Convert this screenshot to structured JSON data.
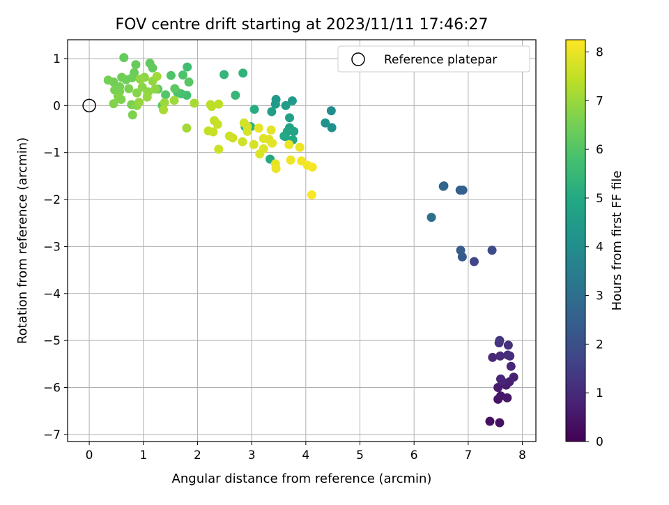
{
  "chart_data": {
    "type": "scatter",
    "title": "FOV centre drift starting at 2023/11/11 17:46:27",
    "xlabel": "Angular distance from reference (arcmin)",
    "ylabel": "Rotation from reference (arcmin)",
    "xlim": [
      -0.4,
      8.25
    ],
    "ylim": [
      -7.15,
      1.4
    ],
    "xticks": [
      0,
      1,
      2,
      3,
      4,
      5,
      6,
      7,
      8
    ],
    "yticks": [
      1,
      0,
      -1,
      -2,
      -3,
      -4,
      -5,
      -6,
      -7
    ],
    "grid": true,
    "legend": {
      "position": "upper-right",
      "entries": [
        "Reference platepar"
      ]
    },
    "reference_point": {
      "x": 0,
      "y": 0,
      "marker": "open-circle"
    },
    "colorbar": {
      "label": "Hours from first FF file",
      "min": 0,
      "max": 8.25,
      "ticks": [
        0,
        1,
        2,
        3,
        4,
        5,
        6,
        7,
        8
      ],
      "colormap": "viridis"
    },
    "points": [
      {
        "x": 7.4,
        "y": -6.72,
        "h": 0.35
      },
      {
        "x": 7.58,
        "y": -6.75,
        "h": 0.4
      },
      {
        "x": 7.55,
        "y": -6.25,
        "h": 0.45
      },
      {
        "x": 7.6,
        "y": -6.18,
        "h": 0.5
      },
      {
        "x": 7.72,
        "y": -6.22,
        "h": 0.55
      },
      {
        "x": 7.55,
        "y": -6.0,
        "h": 0.6
      },
      {
        "x": 7.7,
        "y": -5.95,
        "h": 0.65
      },
      {
        "x": 7.76,
        "y": -5.88,
        "h": 0.7
      },
      {
        "x": 7.84,
        "y": -5.78,
        "h": 0.75
      },
      {
        "x": 7.6,
        "y": -5.82,
        "h": 0.8
      },
      {
        "x": 7.62,
        "y": -5.86,
        "h": 0.85
      },
      {
        "x": 7.79,
        "y": -5.55,
        "h": 0.9
      },
      {
        "x": 7.45,
        "y": -5.36,
        "h": 0.95
      },
      {
        "x": 7.59,
        "y": -5.33,
        "h": 1.0
      },
      {
        "x": 7.73,
        "y": -5.31,
        "h": 1.05
      },
      {
        "x": 7.77,
        "y": -5.33,
        "h": 1.1
      },
      {
        "x": 7.74,
        "y": -5.1,
        "h": 1.15
      },
      {
        "x": 7.57,
        "y": -5.05,
        "h": 1.2
      },
      {
        "x": 7.58,
        "y": -5.0,
        "h": 1.3
      },
      {
        "x": 7.11,
        "y": -3.32,
        "h": 1.7
      },
      {
        "x": 7.44,
        "y": -3.08,
        "h": 1.9
      },
      {
        "x": 6.89,
        "y": -3.22,
        "h": 2.3
      },
      {
        "x": 6.86,
        "y": -3.08,
        "h": 2.4
      },
      {
        "x": 6.85,
        "y": -1.8,
        "h": 2.5
      },
      {
        "x": 6.9,
        "y": -1.8,
        "h": 2.55
      },
      {
        "x": 6.55,
        "y": -1.71,
        "h": 2.7
      },
      {
        "x": 6.54,
        "y": -1.72,
        "h": 2.75
      },
      {
        "x": 6.32,
        "y": -2.38,
        "h": 3.0
      },
      {
        "x": 4.47,
        "y": -0.11,
        "h": 4.0
      },
      {
        "x": 4.48,
        "y": -0.47,
        "h": 4.1
      },
      {
        "x": 4.36,
        "y": -0.37,
        "h": 4.2
      },
      {
        "x": 3.45,
        "y": 0.13,
        "h": 4.4
      },
      {
        "x": 3.44,
        "y": 0.03,
        "h": 4.45
      },
      {
        "x": 3.75,
        "y": 0.1,
        "h": 4.5
      },
      {
        "x": 3.63,
        "y": 0.0,
        "h": 4.55
      },
      {
        "x": 3.37,
        "y": -0.13,
        "h": 4.6
      },
      {
        "x": 3.7,
        "y": -0.26,
        "h": 4.65
      },
      {
        "x": 3.7,
        "y": -0.47,
        "h": 4.7
      },
      {
        "x": 3.78,
        "y": -0.55,
        "h": 4.75
      },
      {
        "x": 3.66,
        "y": -0.55,
        "h": 4.8
      },
      {
        "x": 3.62,
        "y": -0.66,
        "h": 4.85
      },
      {
        "x": 3.76,
        "y": -0.73,
        "h": 4.9
      },
      {
        "x": 3.6,
        "y": -0.65,
        "h": 4.95
      },
      {
        "x": 3.34,
        "y": -1.14,
        "h": 5.0
      },
      {
        "x": 3.05,
        "y": -0.08,
        "h": 5.1
      },
      {
        "x": 2.88,
        "y": -0.45,
        "h": 5.15
      },
      {
        "x": 2.98,
        "y": -0.45,
        "h": 5.2
      },
      {
        "x": 2.84,
        "y": 0.69,
        "h": 5.3
      },
      {
        "x": 2.49,
        "y": 0.66,
        "h": 5.4
      },
      {
        "x": 2.7,
        "y": 0.22,
        "h": 5.45
      },
      {
        "x": 1.81,
        "y": 0.82,
        "h": 5.7
      },
      {
        "x": 1.8,
        "y": 0.22,
        "h": 5.75
      },
      {
        "x": 1.7,
        "y": 0.25,
        "h": 5.8
      },
      {
        "x": 1.63,
        "y": 0.28,
        "h": 5.85
      },
      {
        "x": 1.73,
        "y": 0.65,
        "h": 5.9
      },
      {
        "x": 1.51,
        "y": 0.64,
        "h": 5.95
      },
      {
        "x": 1.41,
        "y": 0.23,
        "h": 6.0
      },
      {
        "x": 1.35,
        "y": 0.0,
        "h": 6.05
      },
      {
        "x": 1.84,
        "y": 0.5,
        "h": 6.1
      },
      {
        "x": 1.58,
        "y": 0.36,
        "h": 6.15
      },
      {
        "x": 1.27,
        "y": 0.35,
        "h": 6.2
      },
      {
        "x": 1.17,
        "y": 0.8,
        "h": 6.25
      },
      {
        "x": 1.12,
        "y": 0.9,
        "h": 6.25
      },
      {
        "x": 0.64,
        "y": 1.02,
        "h": 6.3
      },
      {
        "x": 0.86,
        "y": 0.87,
        "h": 6.3
      },
      {
        "x": 0.83,
        "y": 0.7,
        "h": 6.35
      },
      {
        "x": 0.79,
        "y": 0.59,
        "h": 6.4
      },
      {
        "x": 0.68,
        "y": 0.55,
        "h": 6.4
      },
      {
        "x": 0.45,
        "y": 0.5,
        "h": 6.45
      },
      {
        "x": 0.6,
        "y": 0.6,
        "h": 6.45
      },
      {
        "x": 0.56,
        "y": 0.4,
        "h": 6.5
      },
      {
        "x": 0.35,
        "y": 0.54,
        "h": 6.5
      },
      {
        "x": 0.56,
        "y": 0.3,
        "h": 6.55
      },
      {
        "x": 0.47,
        "y": 0.33,
        "h": 6.55
      },
      {
        "x": 0.73,
        "y": 0.36,
        "h": 6.6
      },
      {
        "x": 0.78,
        "y": 0.02,
        "h": 6.6
      },
      {
        "x": 0.8,
        "y": -0.2,
        "h": 6.65
      },
      {
        "x": 0.59,
        "y": 0.13,
        "h": 6.65
      },
      {
        "x": 0.45,
        "y": 0.04,
        "h": 6.7
      },
      {
        "x": 0.53,
        "y": 0.2,
        "h": 6.7
      },
      {
        "x": 0.88,
        "y": 0.0,
        "h": 6.75
      },
      {
        "x": 0.88,
        "y": 0.27,
        "h": 6.75
      },
      {
        "x": 0.98,
        "y": 0.39,
        "h": 6.8
      },
      {
        "x": 1.02,
        "y": 0.6,
        "h": 6.8
      },
      {
        "x": 1.09,
        "y": 0.29,
        "h": 6.85
      },
      {
        "x": 1.22,
        "y": 0.35,
        "h": 6.85
      },
      {
        "x": 1.17,
        "y": 0.52,
        "h": 6.9
      },
      {
        "x": 0.94,
        "y": 0.56,
        "h": 6.9
      },
      {
        "x": 1.07,
        "y": 0.18,
        "h": 6.95
      },
      {
        "x": 0.92,
        "y": 0.07,
        "h": 6.95
      },
      {
        "x": 1.39,
        "y": 0.06,
        "h": 7.0
      },
      {
        "x": 1.57,
        "y": 0.11,
        "h": 7.05
      },
      {
        "x": 1.25,
        "y": 0.62,
        "h": 7.05
      },
      {
        "x": 1.8,
        "y": -0.48,
        "h": 7.1
      },
      {
        "x": 1.94,
        "y": 0.05,
        "h": 7.15
      },
      {
        "x": 1.37,
        "y": -0.09,
        "h": 7.15
      },
      {
        "x": 2.24,
        "y": 0.02,
        "h": 7.4
      },
      {
        "x": 2.26,
        "y": -0.02,
        "h": 7.4
      },
      {
        "x": 2.39,
        "y": 0.03,
        "h": 7.45
      },
      {
        "x": 2.2,
        "y": -0.54,
        "h": 7.5
      },
      {
        "x": 2.31,
        "y": -0.32,
        "h": 7.5
      },
      {
        "x": 2.37,
        "y": -0.4,
        "h": 7.55
      },
      {
        "x": 2.29,
        "y": -0.56,
        "h": 7.55
      },
      {
        "x": 2.39,
        "y": -0.93,
        "h": 7.6
      },
      {
        "x": 2.59,
        "y": -0.65,
        "h": 7.6
      },
      {
        "x": 2.65,
        "y": -0.69,
        "h": 7.65
      },
      {
        "x": 2.83,
        "y": -0.77,
        "h": 7.65
      },
      {
        "x": 2.86,
        "y": -0.37,
        "h": 7.7
      },
      {
        "x": 2.92,
        "y": -0.45,
        "h": 7.7
      },
      {
        "x": 2.92,
        "y": -0.55,
        "h": 7.75
      },
      {
        "x": 3.04,
        "y": -0.83,
        "h": 7.75
      },
      {
        "x": 3.15,
        "y": -1.03,
        "h": 7.8
      },
      {
        "x": 3.22,
        "y": -0.92,
        "h": 7.8
      },
      {
        "x": 3.22,
        "y": -0.7,
        "h": 7.85
      },
      {
        "x": 3.32,
        "y": -0.72,
        "h": 7.85
      },
      {
        "x": 3.38,
        "y": -0.8,
        "h": 7.9
      },
      {
        "x": 3.36,
        "y": -0.52,
        "h": 7.9
      },
      {
        "x": 3.13,
        "y": -0.48,
        "h": 7.95
      },
      {
        "x": 3.44,
        "y": -1.24,
        "h": 7.95
      },
      {
        "x": 3.45,
        "y": -1.34,
        "h": 8.0
      },
      {
        "x": 3.69,
        "y": -0.83,
        "h": 8.0
      },
      {
        "x": 3.72,
        "y": -1.16,
        "h": 8.05
      },
      {
        "x": 3.89,
        "y": -0.89,
        "h": 8.05
      },
      {
        "x": 3.92,
        "y": -1.18,
        "h": 8.1
      },
      {
        "x": 4.03,
        "y": -1.27,
        "h": 8.1
      },
      {
        "x": 4.12,
        "y": -1.31,
        "h": 8.15
      },
      {
        "x": 4.11,
        "y": -1.9,
        "h": 8.2
      }
    ]
  }
}
